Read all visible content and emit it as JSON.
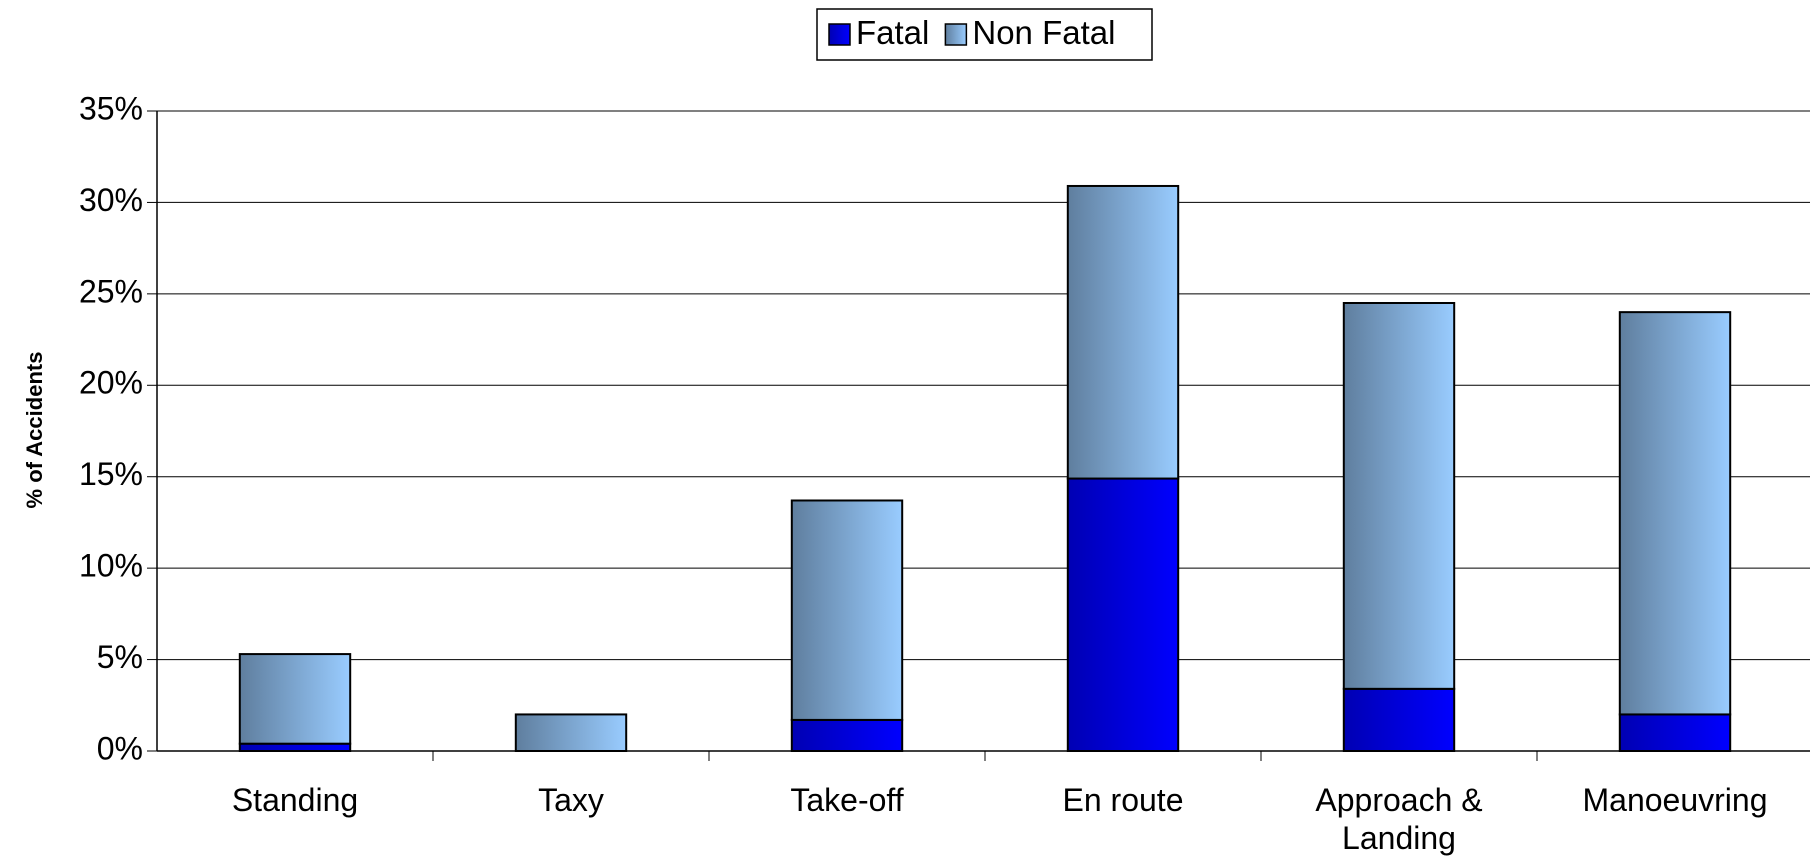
{
  "chart_data": {
    "type": "stacked_bar",
    "y_label": "% of Accidents",
    "categories": [
      "Standing",
      "Taxy",
      "Take-off",
      "En route",
      "Approach & Landing",
      "Manoeuvring"
    ],
    "series": [
      {
        "name": "Fatal",
        "color": "#0000ff",
        "values": [
          0.4,
          0,
          1.7,
          14.9,
          3.4,
          2.0
        ]
      },
      {
        "name": "Non Fatal",
        "color": "#99ccff",
        "values": [
          4.9,
          2.0,
          12.0,
          16.0,
          21.1,
          22.0
        ]
      }
    ],
    "ylim": [
      0,
      35
    ],
    "yticks": [
      {
        "value": 0,
        "label": "0%"
      },
      {
        "value": 5,
        "label": "5%"
      },
      {
        "value": 10,
        "label": "10%"
      },
      {
        "value": 15,
        "label": "15%"
      },
      {
        "value": 20,
        "label": "20%"
      },
      {
        "value": 25,
        "label": "25%"
      },
      {
        "value": 30,
        "label": "30%"
      },
      {
        "value": 35,
        "label": "35%"
      }
    ],
    "grid": true,
    "legend": "top"
  }
}
